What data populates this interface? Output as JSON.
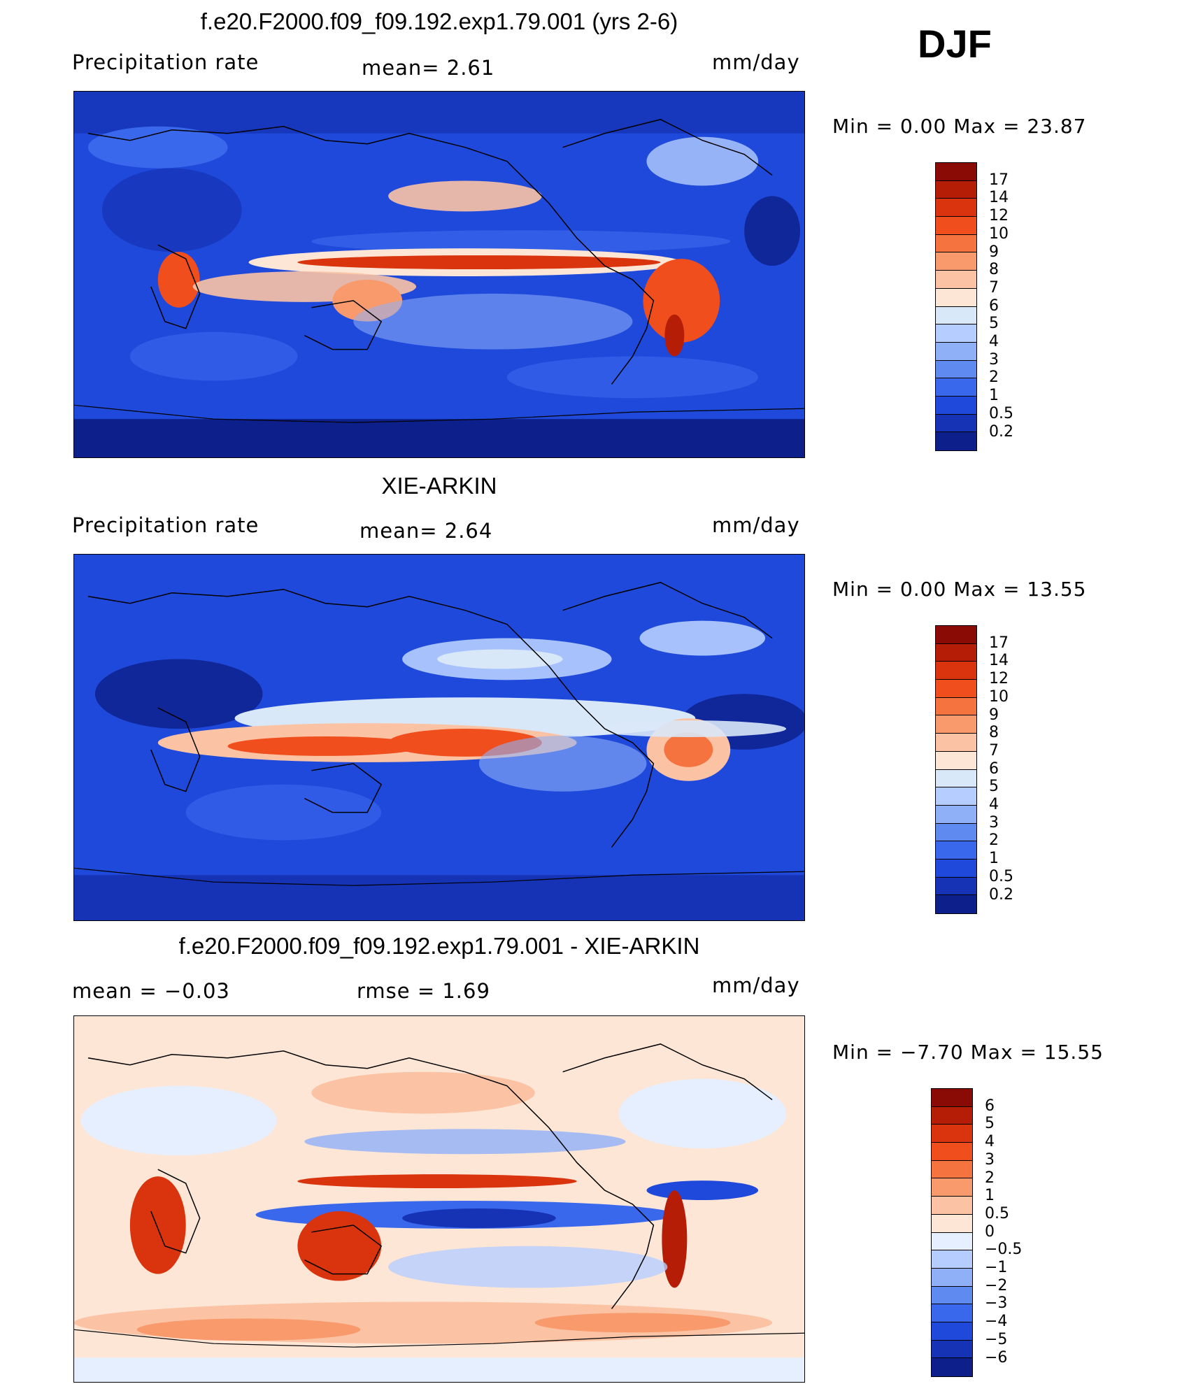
{
  "season": "DJF",
  "panels": [
    {
      "id": "model",
      "title": "f.e20.F2000.f09_f09.192.exp1.79.001 (yrs 2-6)",
      "left_label": "Precipitation  rate",
      "mid_label": "mean=    2.61",
      "units": "mm/day",
      "minmax": "Min  =     0.00  Max  =     23.87"
    },
    {
      "id": "obs",
      "title": "XIE-ARKIN",
      "left_label": "Precipitation  rate",
      "mid_label": "mean=    2.64",
      "units": "mm/day",
      "minmax": "Min  =     0.00  Max  =     13.55"
    },
    {
      "id": "diff",
      "title": "f.e20.F2000.f09_f09.192.exp1.79.001 - XIE-ARKIN",
      "left_label": "mean  =    −0.03",
      "mid_label": "rmse  =     1.69",
      "units": "mm/day",
      "minmax": "Min  =   −7.70  Max  =    15.55"
    }
  ],
  "colorbars": {
    "precip": {
      "labels": [
        "17",
        "14",
        "12",
        "10",
        "9",
        "8",
        "7",
        "6",
        "5",
        "4",
        "3",
        "2",
        "1",
        "0.5",
        "0.2"
      ],
      "colors": [
        "#8a0b06",
        "#b51d07",
        "#d9340d",
        "#f04e1c",
        "#f5733f",
        "#f89a6c",
        "#fbc3a4",
        "#fde6d6",
        "#d9e8f8",
        "#b5ceff",
        "#8fb0f7",
        "#5f8bf0",
        "#3a68ec",
        "#1f49db",
        "#1533b4",
        "#0c1f8a"
      ]
    },
    "diff": {
      "labels": [
        "6",
        "5",
        "4",
        "3",
        "2",
        "1",
        "0.5",
        "0",
        "−0.5",
        "−1",
        "−2",
        "−3",
        "−4",
        "−5",
        "−6"
      ],
      "colors": [
        "#8a0b06",
        "#b51d07",
        "#d9340d",
        "#f04e1c",
        "#f5733f",
        "#f89a6c",
        "#fbc3a4",
        "#fde6d6",
        "#e6efff",
        "#b5ceff",
        "#8fb0f7",
        "#5f8bf0",
        "#3a68ec",
        "#1f49db",
        "#1533b4",
        "#0c1f8a"
      ]
    }
  }
}
